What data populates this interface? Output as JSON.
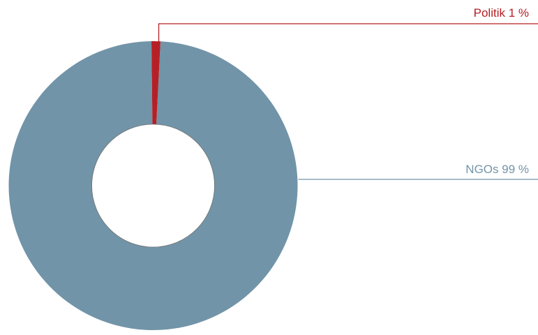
{
  "chart_data": {
    "type": "pie",
    "variant": "donut",
    "title": "",
    "slices": [
      {
        "label": "Politik",
        "value": 1,
        "display": "Politik 1 %",
        "color": "#b52026"
      },
      {
        "label": "NGOs",
        "value": 99,
        "display": "NGOs 99 %",
        "color": "#7194a8"
      }
    ],
    "hole_color": "#ffffff",
    "hole_stroke": "#6f6f6f",
    "legend": "none",
    "labels": "callout lines at right"
  }
}
